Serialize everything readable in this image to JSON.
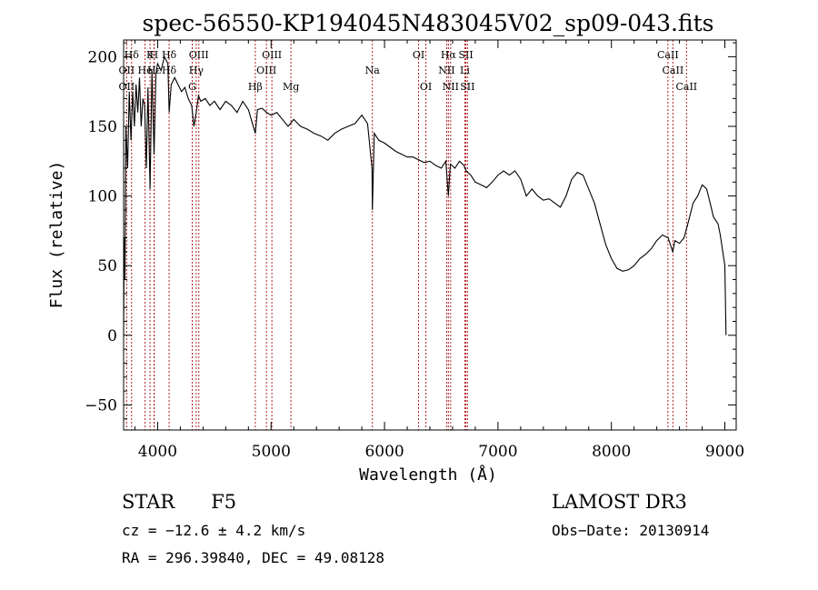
{
  "chart_data": {
    "type": "line",
    "title": "spec-56550-KP194045N483045V02_sp09-043.fits",
    "xlabel": "Wavelength (Å)",
    "ylabel": "Flux (relative)",
    "xlim": [
      3700,
      9100
    ],
    "ylim": [
      -68,
      212
    ],
    "xticks": [
      4000,
      5000,
      6000,
      7000,
      8000,
      9000
    ],
    "xtick_labels": [
      "4000",
      "5000",
      "6000",
      "7000",
      "8000",
      "9000"
    ],
    "yticks": [
      -50,
      0,
      50,
      100,
      150,
      200
    ],
    "ytick_labels": [
      "−50",
      "0",
      "50",
      "100",
      "150",
      "200"
    ],
    "series": [
      {
        "name": "flux",
        "x": [
          3700,
          3705,
          3712,
          3720,
          3735,
          3750,
          3765,
          3780,
          3795,
          3810,
          3825,
          3840,
          3855,
          3870,
          3885,
          3900,
          3915,
          3933,
          3950,
          3968,
          3985,
          4000,
          4030,
          4060,
          4090,
          4101,
          4120,
          4150,
          4180,
          4210,
          4240,
          4270,
          4300,
          4320,
          4340,
          4360,
          4380,
          4420,
          4460,
          4500,
          4550,
          4600,
          4650,
          4700,
          4750,
          4800,
          4861,
          4880,
          4920,
          4960,
          5000,
          5050,
          5100,
          5150,
          5200,
          5260,
          5320,
          5380,
          5440,
          5500,
          5560,
          5620,
          5680,
          5740,
          5800,
          5850,
          5890,
          5893,
          5910,
          5950,
          6000,
          6050,
          6100,
          6150,
          6200,
          6250,
          6300,
          6350,
          6400,
          6450,
          6500,
          6540,
          6563,
          6580,
          6620,
          6660,
          6700,
          6720,
          6760,
          6800,
          6850,
          6900,
          6950,
          7000,
          7050,
          7100,
          7150,
          7200,
          7250,
          7300,
          7350,
          7400,
          7450,
          7500,
          7550,
          7600,
          7650,
          7700,
          7750,
          7800,
          7850,
          7900,
          7950,
          8000,
          8050,
          8100,
          8150,
          8200,
          8250,
          8300,
          8350,
          8400,
          8450,
          8500,
          8540,
          8560,
          8600,
          8640,
          8680,
          8720,
          8760,
          8800,
          8840,
          8870,
          8900,
          8940,
          8960,
          9000,
          9010
        ],
        "y": [
          0,
          70,
          40,
          150,
          120,
          175,
          140,
          175,
          150,
          180,
          160,
          185,
          150,
          170,
          165,
          120,
          178,
          105,
          190,
          130,
          188,
          195,
          190,
          200,
          195,
          160,
          180,
          185,
          180,
          175,
          178,
          170,
          165,
          150,
          160,
          172,
          168,
          170,
          165,
          168,
          162,
          168,
          165,
          160,
          168,
          162,
          145,
          162,
          163,
          160,
          158,
          160,
          155,
          150,
          155,
          150,
          148,
          145,
          143,
          140,
          145,
          148,
          150,
          152,
          158,
          152,
          120,
          90,
          145,
          140,
          138,
          135,
          132,
          130,
          128,
          128,
          126,
          124,
          125,
          122,
          120,
          125,
          100,
          123,
          120,
          125,
          122,
          118,
          115,
          110,
          108,
          106,
          110,
          115,
          118,
          115,
          118,
          112,
          100,
          105,
          100,
          97,
          98,
          95,
          92,
          100,
          112,
          117,
          115,
          105,
          95,
          80,
          65,
          55,
          48,
          46,
          47,
          50,
          55,
          58,
          62,
          68,
          72,
          70,
          60,
          68,
          66,
          70,
          82,
          95,
          100,
          108,
          105,
          95,
          85,
          80,
          72,
          50,
          0
        ]
      }
    ],
    "lines": [
      {
        "name": "Hδ",
        "x": 3770,
        "row": 0
      },
      {
        "name": "OII",
        "x": 3727,
        "row": 1
      },
      {
        "name": "OII",
        "x": 3727,
        "row": 2
      },
      {
        "name": "K",
        "x": 3933,
        "row": 0
      },
      {
        "name": "He",
        "x": 3889,
        "row": 1
      },
      {
        "name": "H",
        "x": 3968,
        "row": 0
      },
      {
        "name": "Hε",
        "x": 3970,
        "row": 1
      },
      {
        "name": "Hδ",
        "x": 4101,
        "row": 0
      },
      {
        "name": "Hδ",
        "x": 4101,
        "row": 1
      },
      {
        "name": "OIII",
        "x": 4363,
        "row": 0
      },
      {
        "name": "Hγ",
        "x": 4340,
        "row": 1
      },
      {
        "name": "G",
        "x": 4305,
        "row": 2
      },
      {
        "name": "Hβ",
        "x": 4861,
        "row": 2
      },
      {
        "name": "OIII",
        "x": 5007,
        "row": 0
      },
      {
        "name": "OIII",
        "x": 4959,
        "row": 1
      },
      {
        "name": "Mg",
        "x": 5175,
        "row": 2
      },
      {
        "name": "Na",
        "x": 5893,
        "row": 1
      },
      {
        "name": "OI",
        "x": 6300,
        "row": 0
      },
      {
        "name": "OI",
        "x": 6364,
        "row": 2
      },
      {
        "name": "Hα",
        "x": 6563,
        "row": 0
      },
      {
        "name": "NII",
        "x": 6548,
        "row": 1
      },
      {
        "name": "NII",
        "x": 6583,
        "row": 2
      },
      {
        "name": "SII",
        "x": 6717,
        "row": 0
      },
      {
        "name": "Li",
        "x": 6708,
        "row": 1
      },
      {
        "name": "SII",
        "x": 6731,
        "row": 2
      },
      {
        "name": "CaII",
        "x": 8498,
        "row": 0
      },
      {
        "name": "CaII",
        "x": 8542,
        "row": 1
      },
      {
        "name": "CaII",
        "x": 8662,
        "row": 2
      }
    ]
  },
  "info": {
    "object_class": "STAR",
    "subclass": "F5",
    "survey": "LAMOST DR3",
    "cz": "cz = −12.6 ± 4.2 km/s",
    "obs_date": "Obs−Date: 20130914",
    "radec": "RA = 296.39840, DEC =  49.08128"
  },
  "colors": {
    "line_marker": "#b22222",
    "spectrum": "#000000"
  }
}
